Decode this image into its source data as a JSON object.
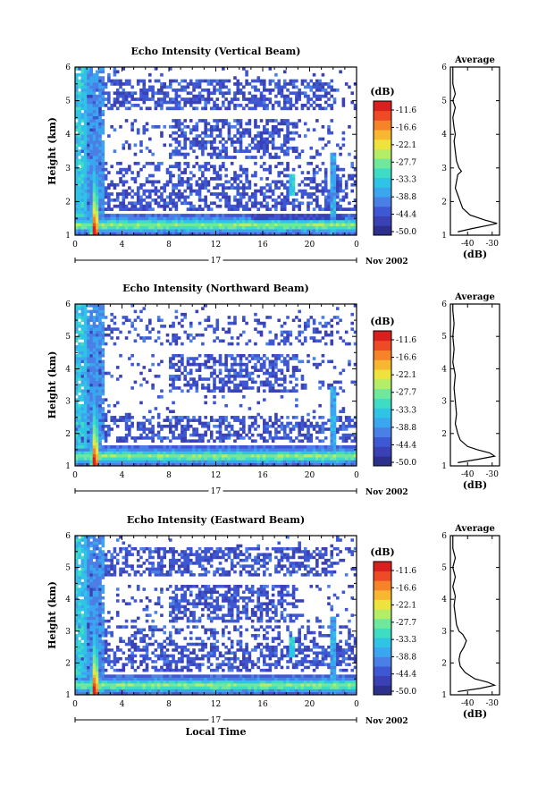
{
  "chart_data": [
    {
      "type": "heatmap",
      "title": "Echo Intensity (Vertical Beam)",
      "ylabel": "Height (km)",
      "xlim": [
        0,
        24
      ],
      "ylim": [
        1,
        6
      ],
      "x_ticks": [
        "0",
        "4",
        "8",
        "12",
        "16",
        "20",
        "0"
      ],
      "y_ticks": [
        "1",
        "2",
        "3",
        "4",
        "5",
        "6"
      ],
      "date_day": "17",
      "date_month": "Nov 2002",
      "colorbar": {
        "unit": "(dB)",
        "ticks": [
          "-11.6",
          "-16.6",
          "-22.1",
          "-27.7",
          "-33.3",
          "-38.8",
          "-44.4",
          "-50.0"
        ],
        "range": [
          -52,
          -9
        ]
      },
      "average_profile": {
        "title": "Average",
        "xlabel": "(dB)",
        "x_ticks": [
          "-40",
          "-30"
        ],
        "xlim": [
          -47,
          -27
        ],
        "heights": [
          1.1,
          1.2,
          1.3,
          1.35,
          1.45,
          1.6,
          1.8,
          2.0,
          2.2,
          2.4,
          2.6,
          2.8,
          2.9,
          3.0,
          3.2,
          3.5,
          3.8,
          4.0,
          4.2,
          4.5,
          4.8,
          5.0,
          5.2,
          5.5,
          5.8,
          6.0
        ],
        "values": [
          -44,
          -38,
          -31,
          -28,
          -33,
          -39,
          -42,
          -43,
          -44,
          -45,
          -44.5,
          -44,
          -42.5,
          -43.5,
          -44.5,
          -45,
          -45.5,
          -45,
          -45.5,
          -46,
          -45,
          -46,
          -45,
          -46,
          -46,
          -46
        ]
      }
    },
    {
      "type": "heatmap",
      "title": "Echo Intensity (Northward Beam)",
      "ylabel": "Height (km)",
      "xlim": [
        0,
        24
      ],
      "ylim": [
        1,
        6
      ],
      "x_ticks": [
        "0",
        "4",
        "8",
        "12",
        "16",
        "20",
        "0"
      ],
      "y_ticks": [
        "1",
        "2",
        "3",
        "4",
        "5",
        "6"
      ],
      "date_day": "17",
      "date_month": "Nov 2002",
      "colorbar": {
        "unit": "(dB)",
        "ticks": [
          "-11.6",
          "-16.6",
          "-22.1",
          "-27.7",
          "-33.3",
          "-38.8",
          "-44.4",
          "-50.0"
        ],
        "range": [
          -52,
          -9
        ]
      },
      "average_profile": {
        "title": "Average",
        "xlabel": "(dB)",
        "x_ticks": [
          "-40",
          "-30"
        ],
        "xlim": [
          -47,
          -27
        ],
        "heights": [
          1.1,
          1.2,
          1.3,
          1.4,
          1.5,
          1.6,
          1.8,
          2.0,
          2.3,
          2.6,
          3.0,
          3.4,
          3.8,
          4.2,
          4.6,
          5.0,
          5.4,
          5.8,
          6.0
        ],
        "values": [
          -44,
          -36,
          -29,
          -31,
          -36,
          -40,
          -43,
          -44,
          -45,
          -44.5,
          -45,
          -45.5,
          -45,
          -46,
          -45.5,
          -46,
          -45.5,
          -46,
          -46
        ]
      }
    },
    {
      "type": "heatmap",
      "title": "Echo Intensity (Eastward Beam)",
      "xlabel": "Local Time",
      "ylabel": "Height (km)",
      "xlim": [
        0,
        24
      ],
      "ylim": [
        1,
        6
      ],
      "x_ticks": [
        "0",
        "4",
        "8",
        "12",
        "16",
        "20",
        "0"
      ],
      "y_ticks": [
        "1",
        "2",
        "3",
        "4",
        "5",
        "6"
      ],
      "date_day": "17",
      "date_month": "Nov 2002",
      "colorbar": {
        "unit": "(dB)",
        "ticks": [
          "-11.6",
          "-16.6",
          "-22.1",
          "-27.7",
          "-33.3",
          "-38.8",
          "-44.4",
          "-50.0"
        ],
        "range": [
          -52,
          -9
        ]
      },
      "average_profile": {
        "title": "Average",
        "xlabel": "(dB)",
        "x_ticks": [
          "-40",
          "-30"
        ],
        "xlim": [
          -47,
          -27
        ],
        "heights": [
          1.1,
          1.2,
          1.3,
          1.4,
          1.5,
          1.7,
          1.9,
          2.1,
          2.3,
          2.5,
          2.7,
          2.9,
          3.0,
          3.2,
          3.5,
          3.8,
          4.1,
          4.4,
          4.7,
          5.0,
          5.3,
          5.6,
          6.0
        ],
        "values": [
          -44,
          -35,
          -29,
          -32,
          -37,
          -41,
          -43,
          -43.5,
          -43,
          -41.5,
          -40.5,
          -42,
          -43.5,
          -44.5,
          -45,
          -45.5,
          -45,
          -46,
          -45,
          -46,
          -45,
          -46,
          -46
        ]
      }
    }
  ]
}
